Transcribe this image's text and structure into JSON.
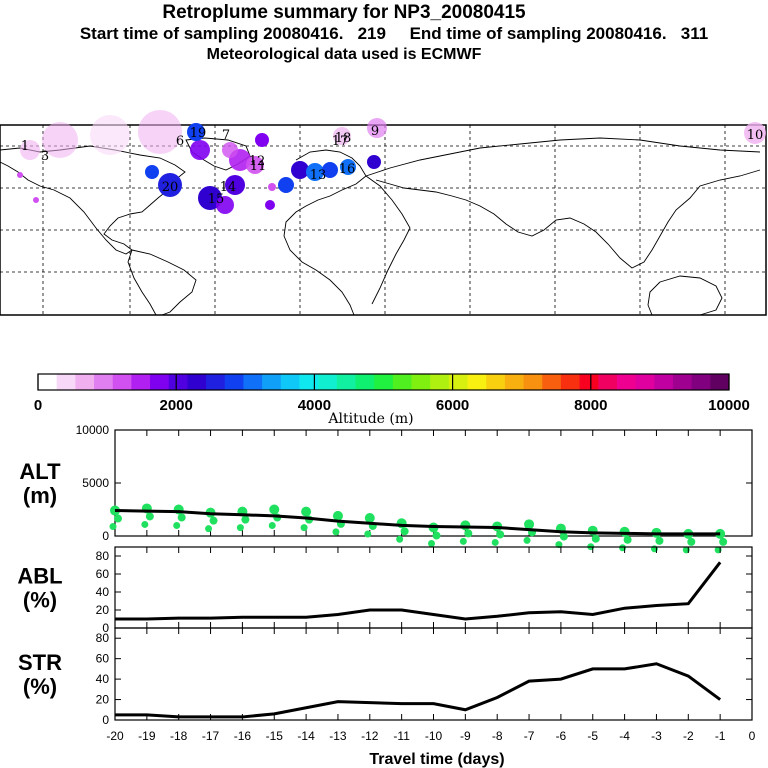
{
  "header": {
    "title": "Retroplume summary for NP3_20080415",
    "sampling": "Start time of sampling 20080416.   219     End time of sampling 20080416.   311",
    "met": "Meteorological data used is ECMWF"
  },
  "colorbar": {
    "label": "Altitude (m)",
    "ticks": [
      "0",
      "2000",
      "4000",
      "6000",
      "8000",
      "10000"
    ],
    "colors": [
      "#ffffff",
      "#f8d8f8",
      "#f0b0f0",
      "#e080f0",
      "#d050f0",
      "#b020f0",
      "#8000f0",
      "#5000e0",
      "#3000d0",
      "#2020e0",
      "#1040f0",
      "#1070f8",
      "#10a0f8",
      "#10c8f8",
      "#10e8f0",
      "#10f0d0",
      "#10f0a0",
      "#10f070",
      "#20f040",
      "#50f020",
      "#80f010",
      "#b0f010",
      "#d8f010",
      "#f8f010",
      "#f8d010",
      "#f8b010",
      "#f89010",
      "#f86010",
      "#f83010",
      "#f80020",
      "#f00060",
      "#f00090",
      "#e000a0",
      "#c000a0",
      "#a00090",
      "#800080",
      "#600060"
    ]
  },
  "map": {
    "labels": [
      "19",
      "7",
      "18",
      "9",
      "10",
      "1",
      "20",
      "12",
      "13",
      "16",
      "17",
      "14",
      "15",
      "11",
      "3",
      "6"
    ]
  },
  "chart_data": [
    {
      "type": "scatter",
      "title": "",
      "ylabel": "ALT\n(m)",
      "ylabel_lines": [
        "ALT",
        "(m)"
      ],
      "ylim": [
        0,
        10000
      ],
      "yticks": [
        "0",
        "5000",
        "10000"
      ],
      "x": [
        -20,
        -19,
        -18,
        -17,
        -16,
        -15,
        -14,
        -13,
        -12,
        -11,
        -10,
        -9,
        -8,
        -7,
        -6,
        -5,
        -4,
        -3,
        -2,
        -1
      ],
      "line_values": [
        2400,
        2350,
        2300,
        2100,
        2000,
        1900,
        1700,
        1400,
        1200,
        1000,
        900,
        850,
        800,
        600,
        400,
        300,
        250,
        200,
        200,
        200
      ],
      "point_values": [
        2400,
        2600,
        2500,
        2200,
        2300,
        2500,
        2300,
        1900,
        1700,
        1200,
        800,
        1000,
        900,
        1100,
        700,
        500,
        400,
        300,
        200,
        200
      ],
      "point_color": "#20e060"
    },
    {
      "type": "line",
      "ylabel_lines": [
        "ABL",
        "(%)"
      ],
      "ylim": [
        0,
        90
      ],
      "yticks": [
        "0",
        "20",
        "40",
        "60",
        "80"
      ],
      "x": [
        -20,
        -19,
        -18,
        -17,
        -16,
        -15,
        -14,
        -13,
        -12,
        -11,
        -10,
        -9,
        -8,
        -7,
        -6,
        -5,
        -4,
        -3,
        -2,
        -1
      ],
      "values": [
        10,
        10,
        11,
        11,
        12,
        12,
        12,
        15,
        20,
        20,
        15,
        10,
        13,
        17,
        18,
        15,
        22,
        25,
        27,
        73
      ]
    },
    {
      "type": "line",
      "ylabel_lines": [
        "STR",
        "(%)"
      ],
      "ylim": [
        0,
        90
      ],
      "yticks": [
        "0",
        "20",
        "40",
        "60",
        "80"
      ],
      "xlabel": "Travel time (days)",
      "xticks": [
        "-20",
        "-19",
        "-18",
        "-17",
        "-16",
        "-15",
        "-14",
        "-13",
        "-12",
        "-11",
        "-10",
        "-9",
        "-8",
        "-7",
        "-6",
        "-5",
        "-4",
        "-3",
        "-2",
        "-1",
        "0"
      ],
      "x": [
        -20,
        -19,
        -18,
        -17,
        -16,
        -15,
        -14,
        -13,
        -12,
        -11,
        -10,
        -9,
        -8,
        -7,
        -6,
        -5,
        -4,
        -3,
        -2,
        -1
      ],
      "values": [
        5,
        5,
        3,
        3,
        3,
        6,
        12,
        18,
        17,
        16,
        16,
        10,
        22,
        38,
        40,
        50,
        50,
        55,
        43,
        20
      ]
    }
  ]
}
